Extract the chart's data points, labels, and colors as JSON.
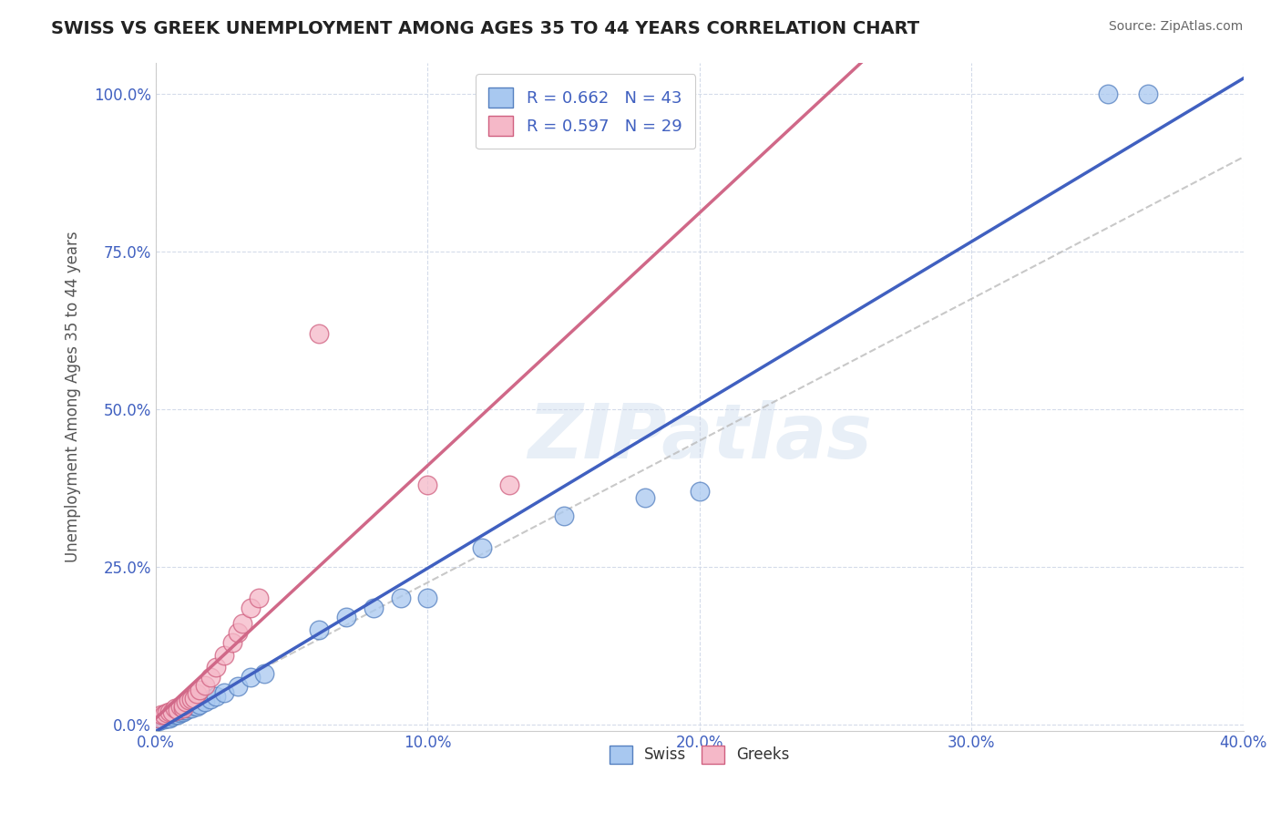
{
  "title": "SWISS VS GREEK UNEMPLOYMENT AMONG AGES 35 TO 44 YEARS CORRELATION CHART",
  "source": "Source: ZipAtlas.com",
  "ylabel": "Unemployment Among Ages 35 to 44 years",
  "xlabel": "",
  "xlim": [
    0.0,
    0.4
  ],
  "ylim": [
    -0.01,
    1.05
  ],
  "xticks": [
    0.0,
    0.1,
    0.2,
    0.3,
    0.4
  ],
  "yticks": [
    0.0,
    0.25,
    0.5,
    0.75,
    1.0
  ],
  "xtick_labels": [
    "0.0%",
    "10.0%",
    "20.0%",
    "30.0%",
    "40.0%"
  ],
  "ytick_labels": [
    "0.0%",
    "25.0%",
    "50.0%",
    "75.0%",
    "100.0%"
  ],
  "swiss_color": "#a8c8f0",
  "greek_color": "#f5b8c8",
  "swiss_edge_color": "#5580c0",
  "greek_edge_color": "#d06080",
  "swiss_line_color": "#4060c0",
  "greek_line_color": "#d06888",
  "ref_line_color": "#bbbbbb",
  "background_color": "#ffffff",
  "grid_color": "#d0d8e8",
  "watermark": "ZIPatlas",
  "title_color": "#222222",
  "source_color": "#666666",
  "tick_color": "#4060c0",
  "ylabel_color": "#555555",
  "legend_label_color": "#4060c0",
  "swiss_x": [
    0.001,
    0.002,
    0.002,
    0.003,
    0.003,
    0.004,
    0.004,
    0.005,
    0.005,
    0.006,
    0.006,
    0.007,
    0.007,
    0.008,
    0.008,
    0.009,
    0.01,
    0.01,
    0.011,
    0.012,
    0.012,
    0.013,
    0.014,
    0.015,
    0.016,
    0.018,
    0.02,
    0.022,
    0.025,
    0.03,
    0.035,
    0.04,
    0.06,
    0.07,
    0.08,
    0.09,
    0.1,
    0.12,
    0.15,
    0.18,
    0.2,
    0.35,
    0.365
  ],
  "swiss_y": [
    0.005,
    0.008,
    0.01,
    0.008,
    0.012,
    0.01,
    0.015,
    0.01,
    0.015,
    0.012,
    0.018,
    0.015,
    0.02,
    0.015,
    0.02,
    0.018,
    0.02,
    0.022,
    0.022,
    0.025,
    0.028,
    0.025,
    0.03,
    0.028,
    0.032,
    0.035,
    0.04,
    0.045,
    0.05,
    0.06,
    0.075,
    0.08,
    0.15,
    0.17,
    0.185,
    0.2,
    0.2,
    0.28,
    0.33,
    0.36,
    0.37,
    1.0,
    1.0
  ],
  "greek_x": [
    0.001,
    0.002,
    0.003,
    0.004,
    0.005,
    0.006,
    0.007,
    0.008,
    0.009,
    0.01,
    0.01,
    0.011,
    0.012,
    0.013,
    0.014,
    0.015,
    0.016,
    0.018,
    0.02,
    0.022,
    0.025,
    0.028,
    0.03,
    0.032,
    0.035,
    0.038,
    0.06,
    0.1,
    0.13
  ],
  "greek_y": [
    0.01,
    0.015,
    0.015,
    0.018,
    0.02,
    0.02,
    0.025,
    0.022,
    0.028,
    0.025,
    0.03,
    0.035,
    0.038,
    0.04,
    0.042,
    0.048,
    0.055,
    0.062,
    0.075,
    0.09,
    0.11,
    0.13,
    0.145,
    0.16,
    0.185,
    0.2,
    0.62,
    0.38,
    0.38
  ],
  "swiss_reg_slope": 1.38,
  "swiss_reg_intercept": 0.01,
  "greek_reg_slope": 3.7,
  "greek_reg_intercept": 0.005,
  "ref_line_x": [
    0.0,
    0.4
  ],
  "ref_line_y": [
    0.0,
    0.9
  ]
}
